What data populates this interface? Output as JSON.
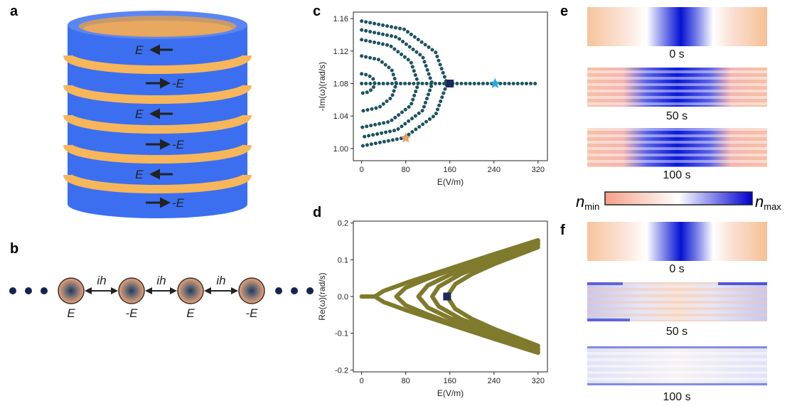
{
  "panel_labels": [
    "a",
    "b",
    "c",
    "d",
    "e",
    "f"
  ],
  "panel_a": {
    "field_labels": [
      "E",
      "-E",
      "E",
      "-E",
      "E",
      "-E"
    ]
  },
  "panel_b": {
    "coupling_labels": [
      "ih",
      "ih",
      "ih"
    ],
    "site_labels": [
      "E",
      "-E",
      "E",
      "-E"
    ]
  },
  "panel_e": {
    "time_labels": [
      "0 s",
      "50 s",
      "100 s"
    ]
  },
  "colorbar": {
    "min_symbol": "n",
    "min_sub": "min",
    "max_symbol": "n",
    "max_sub": "max"
  },
  "panel_f": {
    "time_labels": [
      "0 s",
      "50 s",
      "100 s"
    ]
  },
  "chart_data": [
    {
      "type": "line",
      "color": "#1d5360",
      "xlabel": "E(V/m)",
      "ylabel": "-Im(ω)(rad/s)",
      "xlim": [
        -15,
        337
      ],
      "ylim": [
        0.985,
        1.168
      ],
      "xticks": [
        0,
        80,
        160,
        240,
        320
      ],
      "yticks": [
        {
          "value": 1,
          "label": "1.00"
        },
        1.04,
        1.08,
        1.12,
        1.16
      ],
      "series": [
        {
          "x": [
            0,
            12,
            20.8,
            24,
            20.8,
            12,
            0
          ],
          "values": [
            1.092,
            1.0904,
            1.086,
            1.08,
            1.074,
            1.0696,
            1.068
          ]
        },
        {
          "x": [
            0,
            31.5,
            54.6,
            63,
            54.6,
            31.5,
            0
          ],
          "values": [
            1.114,
            1.1094,
            1.097,
            1.08,
            1.063,
            1.0506,
            1.046
          ]
        },
        {
          "x": [
            0,
            51.5,
            89.2,
            103,
            89.2,
            51.5,
            0
          ],
          "values": [
            1.134,
            1.1268,
            1.107,
            1.08,
            1.053,
            1.0332,
            1.026
          ]
        },
        {
          "x": [
            0,
            64,
            110.8,
            128,
            110.8,
            64,
            0
          ],
          "values": [
            1.146,
            1.1372,
            1.113,
            1.08,
            1.047,
            1.0228,
            1.014
          ]
        },
        {
          "x": [
            0,
            77.5,
            134.2,
            155,
            134.2,
            77.5,
            0
          ],
          "values": [
            1.157,
            1.1467,
            1.1185,
            1.08,
            1.0415,
            1.0133,
            1.003
          ]
        },
        {
          "x": [
            0,
            320
          ],
          "values": [
            1.08,
            1.08
          ]
        }
      ],
      "markers": [
        {
          "shape": "square",
          "x": 160,
          "y": 1.08,
          "color": "#1b2a5c"
        },
        {
          "shape": "star",
          "x": 242,
          "y": 1.08,
          "color": "#2aa8d8"
        },
        {
          "shape": "star",
          "x": 80,
          "y": 1.013,
          "color": "#e6a070"
        }
      ]
    },
    {
      "type": "line",
      "color": "#7f7a2c",
      "xlabel": "E(V/m)",
      "ylabel": "Re(ω)(rad/s)",
      "xlim": [
        -15,
        337
      ],
      "ylim": [
        -0.205,
        0.205
      ],
      "xticks": [
        0,
        80,
        160,
        240,
        320
      ],
      "yticks": [
        -0.2,
        -0.1,
        {
          "value": 0,
          "label": "0.0"
        },
        0.1,
        0.2
      ],
      "series": [
        {
          "x": [
            0,
            24
          ],
          "values": [
            0,
            0
          ]
        },
        {
          "x": [
            24,
            40,
            80,
            160,
            240,
            320,
            null,
            24,
            40,
            80,
            160,
            240,
            320
          ],
          "values": [
            0,
            0.015,
            0.037,
            0.076,
            0.115,
            0.153,
            null,
            0,
            -0.015,
            -0.037,
            -0.076,
            -0.115,
            -0.153
          ]
        },
        {
          "x": [
            63,
            80,
            120,
            160,
            240,
            320,
            null,
            63,
            80,
            120,
            160,
            240,
            320
          ],
          "values": [
            0,
            0.024,
            0.049,
            0.071,
            0.111,
            0.151,
            null,
            0,
            -0.024,
            -0.049,
            -0.071,
            -0.111,
            -0.151
          ]
        },
        {
          "x": [
            103,
            120,
            160,
            240,
            320,
            null,
            103,
            120,
            160,
            240,
            320
          ],
          "values": [
            0,
            0.03,
            0.059,
            0.104,
            0.145,
            null,
            0,
            -0.03,
            -0.059,
            -0.104,
            -0.145
          ]
        },
        {
          "x": [
            128,
            140,
            180,
            240,
            320,
            null,
            128,
            140,
            180,
            240,
            320
          ],
          "values": [
            0,
            0.027,
            0.061,
            0.097,
            0.141,
            null,
            0,
            -0.027,
            -0.061,
            -0.097,
            -0.141
          ]
        },
        {
          "x": [
            155,
            170,
            200,
            240,
            320,
            null,
            155,
            170,
            200,
            240,
            320
          ],
          "values": [
            0,
            0.034,
            0.061,
            0.088,
            0.134,
            null,
            0,
            -0.034,
            -0.061,
            -0.088,
            -0.134
          ]
        }
      ],
      "markers": [
        {
          "shape": "square",
          "x": 155,
          "y": 0,
          "color": "#1b2a5c"
        }
      ]
    }
  ]
}
